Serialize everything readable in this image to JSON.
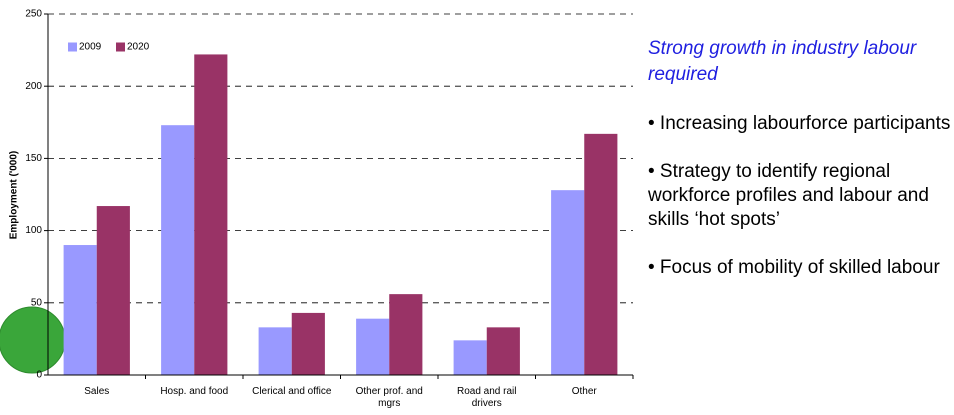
{
  "chart_data": {
    "type": "bar",
    "y_label": "Employment ('000)",
    "categories": [
      "Sales",
      "Hosp. and food",
      "Clerical and office",
      "Other prof. and mgrs",
      "Road and rail drivers",
      "Other"
    ],
    "series": [
      {
        "name": "2009",
        "color": "#9999ff",
        "values": [
          90,
          173,
          33,
          39,
          24,
          128
        ]
      },
      {
        "name": "2020",
        "color": "#993366",
        "values": [
          117,
          222,
          43,
          56,
          33,
          167
        ]
      }
    ],
    "ylim": [
      0,
      250
    ],
    "yticks": [
      0,
      50,
      100,
      150,
      200,
      250
    ],
    "grid": true,
    "legend": "top-left",
    "side_title": "Strong growth in industry labour required",
    "bullets": [
      "• Increasing labourforce participants",
      "• Strategy to identify regional workforce profiles and labour and skills ‘hot spots’",
      "• Focus of mobility of skilled labour"
    ]
  }
}
